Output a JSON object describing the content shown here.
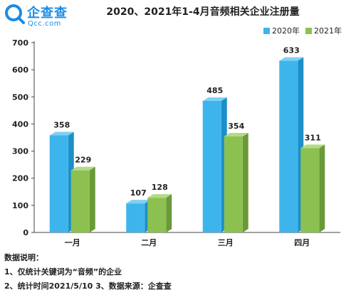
{
  "brand": {
    "name": "企查查",
    "domain": "Qcc.com"
  },
  "colors": {
    "s2020": "#3db5ec",
    "s2020_side": "#1d8fc8",
    "s2020_top": "#7fd0f5",
    "s2021": "#8cc152",
    "s2021_side": "#6a9a38",
    "s2021_top": "#b4da86",
    "brand": "#1a8ce6"
  },
  "chart_data": {
    "type": "bar",
    "title": "2020、2021年1-4月音频相关企业注册量",
    "categories": [
      "一月",
      "二月",
      "三月",
      "四月"
    ],
    "series": [
      {
        "name": "2020年",
        "values": [
          358,
          107,
          485,
          633
        ]
      },
      {
        "name": "2021年",
        "values": [
          229,
          128,
          354,
          311
        ]
      }
    ],
    "yticks": [
      "0",
      "100",
      "200",
      "300",
      "400",
      "500",
      "600",
      "700"
    ],
    "ylim": [
      0,
      700
    ],
    "grid": false,
    "legend_position": "top-right",
    "xlabel": "",
    "ylabel": ""
  },
  "notes": {
    "heading": "数据说明：",
    "line1": "1、仅统计关键词为“音频”的企业",
    "line2": "2、统计时间2021/5/10   3、数据来源：企查查"
  }
}
